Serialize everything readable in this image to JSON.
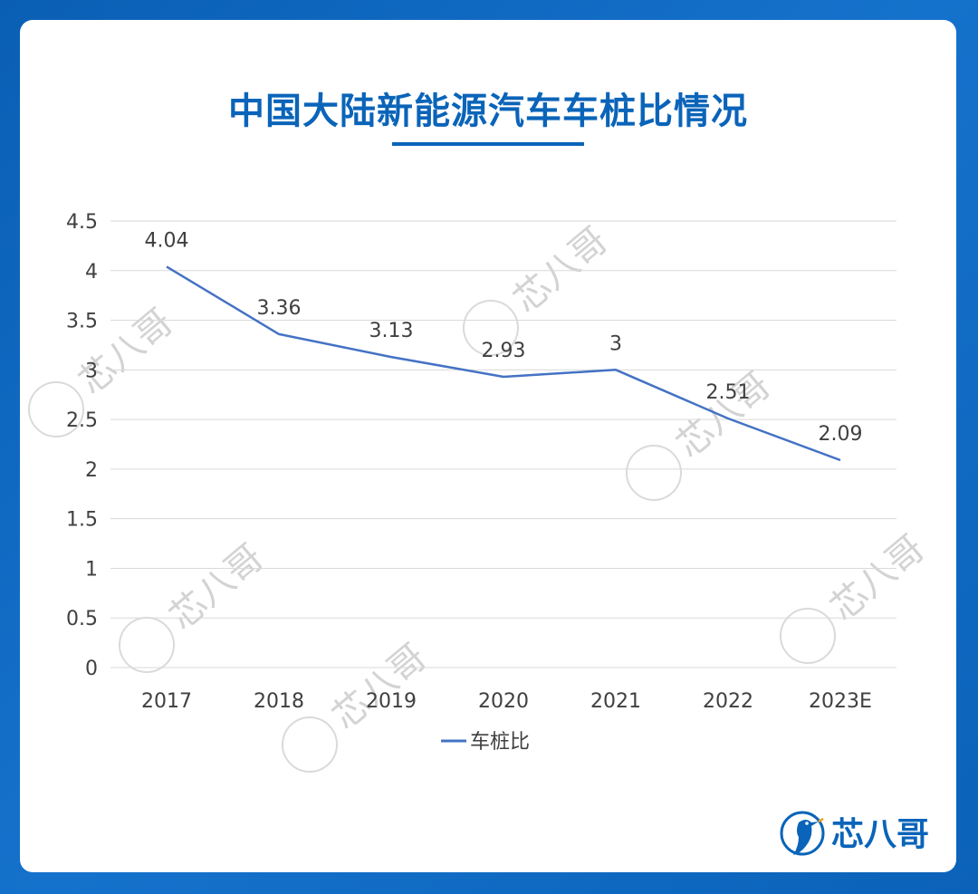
{
  "title": "中国大陆新能源汽车车桩比情况",
  "colors": {
    "accent": "#0a64b9",
    "series": "#4472c4",
    "grid": "#d9d9d9"
  },
  "watermark": {
    "text": "芯八哥"
  },
  "logo": {
    "text": "芯八哥",
    "icon": "bird-logo-icon"
  },
  "chart_data": {
    "type": "line",
    "categories": [
      "2017",
      "2018",
      "2019",
      "2020",
      "2021",
      "2022",
      "2023E"
    ],
    "series": [
      {
        "name": "车桩比",
        "values": [
          4.04,
          3.36,
          3.13,
          2.93,
          3,
          2.51,
          2.09
        ]
      }
    ],
    "data_labels": [
      "4.04",
      "3.36",
      "3.13",
      "2.93",
      "3",
      "2.51",
      "2.09"
    ],
    "y_ticks": [
      "0",
      "0.5",
      "1",
      "1.5",
      "2",
      "2.5",
      "3",
      "3.5",
      "4",
      "4.5"
    ],
    "ylim": [
      0,
      4.5
    ],
    "grid": true,
    "legend": "bottom-center"
  }
}
